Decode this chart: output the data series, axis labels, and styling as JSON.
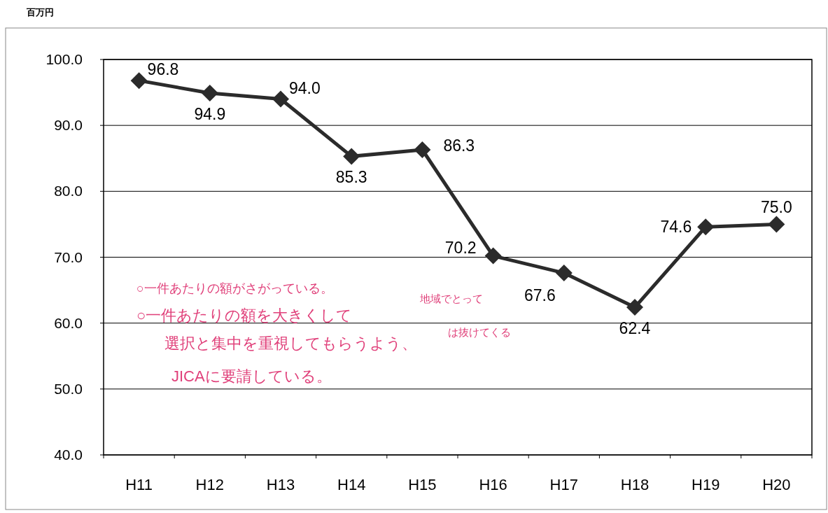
{
  "chart_data": {
    "type": "line",
    "ylabel": "百万円",
    "categories": [
      "H11",
      "H12",
      "H13",
      "H14",
      "H15",
      "H16",
      "H17",
      "H18",
      "H19",
      "H20"
    ],
    "series": [
      {
        "color": "#2b2b2b",
        "values": [
          96.8,
          94.9,
          94.0,
          85.3,
          86.3,
          70.2,
          67.6,
          62.4,
          74.6,
          75.0
        ]
      }
    ],
    "ylim": [
      40,
      100
    ],
    "yticks": [
      {
        "value": 40,
        "label": "40.0"
      },
      {
        "value": 50,
        "label": "50.0"
      },
      {
        "value": 60,
        "label": "60.0"
      },
      {
        "value": 70,
        "label": "70.0"
      },
      {
        "value": 80,
        "label": "80.0"
      },
      {
        "value": 90,
        "label": "90.0"
      },
      {
        "value": 100,
        "label": "100.0"
      }
    ],
    "value_labels": [
      "96.8",
      "94.9",
      "94.0",
      "85.3",
      "86.3",
      "70.2",
      "67.6",
      "62.4",
      "74.6",
      "75.0"
    ],
    "grid": "y",
    "marker": "diamond",
    "line_style": "solid",
    "annotations": [
      "○一件あたりの額がさがっている。",
      "○一件あたりの額を大きくして",
      "選択と集中を重視してもらうよう、",
      "JICAに要請している。",
      "地域でとって",
      "は抜けてくる"
    ]
  }
}
